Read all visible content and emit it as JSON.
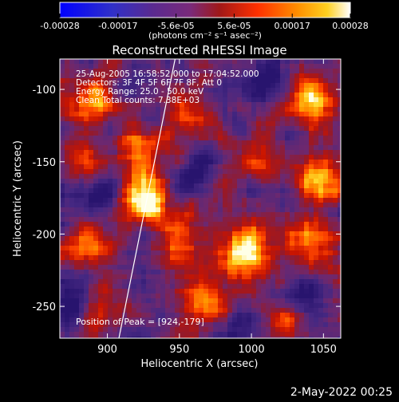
{
  "colorbar": {
    "ticks": [
      "-0.00028",
      "-0.00017",
      "-5.6e-05",
      "5.6e-05",
      "0.00017",
      "0.00028"
    ],
    "unit_label": "(photons cm⁻² s⁻¹ asec⁻²)"
  },
  "colors": {
    "background": "#000000",
    "text": "#ffffff",
    "colormap": [
      "#0000ff",
      "#4b2a8a",
      "#7a2a7a",
      "#b01010",
      "#ff3000",
      "#ff9000",
      "#ffd020",
      "#ffffff"
    ]
  },
  "chart_data": {
    "type": "heatmap",
    "title": "Reconstructed RHESSI Image",
    "xlabel": "Heliocentric X (arcsec)",
    "ylabel": "Heliocentric Y (arcsec)",
    "xlim": [
      867,
      1062
    ],
    "ylim": [
      -272,
      -79
    ],
    "x_ticks": [
      900,
      950,
      1000,
      1050
    ],
    "y_ticks": [
      -100,
      -150,
      -200,
      -250
    ],
    "colorbar_range": [
      -0.00028,
      0.00028
    ],
    "annotations": [
      "25-Aug-2005 16:58:52.000 to 17:04:52.000",
      "Detectors: 3F 4F 5F 6F 7F 8F, Att 0",
      "Energy Range: 25.0 - 50.0 keV",
      "Clean     Total counts: 7.38E+03"
    ],
    "peak_text": "Position of Peak = [924,-179]",
    "peak": {
      "x": 924,
      "y": -179
    },
    "limb_line": [
      {
        "x": 908,
        "y": -272
      },
      {
        "x": 947,
        "y": -79
      }
    ],
    "hot_spots": [
      {
        "x": 924,
        "y": -176,
        "level": 1.0
      },
      {
        "x": 922,
        "y": -145,
        "level": 0.55
      },
      {
        "x": 996,
        "y": -210,
        "level": 0.8
      },
      {
        "x": 1040,
        "y": -110,
        "level": 0.85
      },
      {
        "x": 890,
        "y": -110,
        "level": 0.6
      },
      {
        "x": 1050,
        "y": -160,
        "level": 0.7
      },
      {
        "x": 970,
        "y": -245,
        "level": 0.6
      },
      {
        "x": 885,
        "y": -205,
        "level": 0.55
      },
      {
        "x": 1040,
        "y": -205,
        "level": 0.55
      },
      {
        "x": 950,
        "y": -205,
        "level": 0.45
      },
      {
        "x": 1000,
        "y": -150,
        "level": 0.45
      },
      {
        "x": 1020,
        "y": -255,
        "level": 0.4
      },
      {
        "x": 895,
        "y": -255,
        "level": 0.45
      },
      {
        "x": 960,
        "y": -120,
        "level": 0.45
      },
      {
        "x": 880,
        "y": -150,
        "level": 0.4
      }
    ],
    "cold_spots": [
      {
        "x": 880,
        "y": -245
      },
      {
        "x": 1015,
        "y": -95
      },
      {
        "x": 900,
        "y": -170
      },
      {
        "x": 1035,
        "y": -240
      },
      {
        "x": 985,
        "y": -270
      },
      {
        "x": 960,
        "y": -160
      }
    ]
  },
  "footer": {
    "date": "2-May-2022 00:25"
  }
}
